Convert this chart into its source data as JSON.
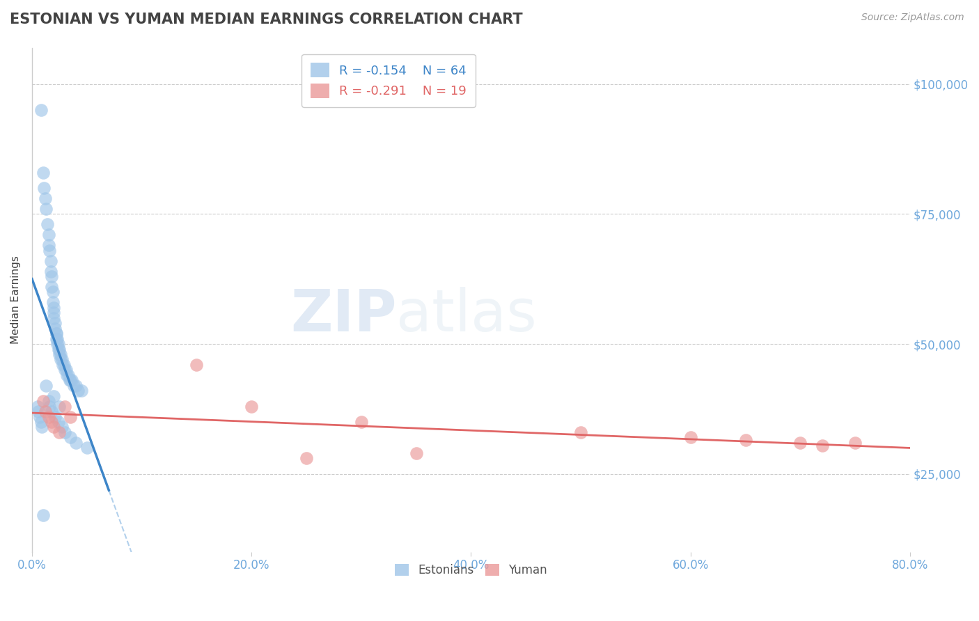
{
  "title": "ESTONIAN VS YUMAN MEDIAN EARNINGS CORRELATION CHART",
  "source_text": "Source: ZipAtlas.com",
  "ylabel": "Median Earnings",
  "xlim": [
    0.0,
    0.8
  ],
  "ylim": [
    10000,
    107000
  ],
  "yticks": [
    25000,
    50000,
    75000,
    100000
  ],
  "ytick_labels": [
    "$25,000",
    "$50,000",
    "$75,000",
    "$100,000"
  ],
  "xtick_labels": [
    "0.0%",
    "20.0%",
    "40.0%",
    "60.0%",
    "80.0%"
  ],
  "xticks": [
    0.0,
    0.2,
    0.4,
    0.6,
    0.8
  ],
  "blue_color": "#9fc5e8",
  "pink_color": "#ea9999",
  "blue_line_color": "#3d85c8",
  "pink_line_color": "#e06666",
  "blue_dash_color": "#9fc5e8",
  "axis_color": "#cccccc",
  "grid_color": "#cccccc",
  "title_color": "#434343",
  "tick_label_color": "#6fa8dc",
  "ylabel_color": "#434343",
  "legend_r1": "R = -0.154",
  "legend_n1": "N = 64",
  "legend_r2": "R = -0.291",
  "legend_n2": "N = 19",
  "legend_label1": "Estonians",
  "legend_label2": "Yuman",
  "blue_x": [
    0.008,
    0.01,
    0.011,
    0.012,
    0.013,
    0.014,
    0.015,
    0.015,
    0.016,
    0.017,
    0.017,
    0.018,
    0.018,
    0.019,
    0.019,
    0.02,
    0.02,
    0.02,
    0.021,
    0.021,
    0.022,
    0.022,
    0.022,
    0.023,
    0.023,
    0.024,
    0.024,
    0.025,
    0.025,
    0.026,
    0.026,
    0.027,
    0.028,
    0.029,
    0.03,
    0.031,
    0.032,
    0.033,
    0.034,
    0.035,
    0.036,
    0.038,
    0.04,
    0.042,
    0.045,
    0.005,
    0.006,
    0.007,
    0.008,
    0.009,
    0.015,
    0.016,
    0.018,
    0.021,
    0.024,
    0.027,
    0.03,
    0.035,
    0.04,
    0.05,
    0.013,
    0.02,
    0.025,
    0.01
  ],
  "blue_y": [
    95000,
    83000,
    80000,
    78000,
    76000,
    73000,
    71000,
    69000,
    68000,
    66000,
    64000,
    63000,
    61000,
    60000,
    58000,
    57000,
    56000,
    55000,
    54000,
    53000,
    52000,
    52000,
    51000,
    51000,
    50000,
    50000,
    49000,
    49000,
    48000,
    48000,
    47000,
    47000,
    46000,
    46000,
    45000,
    45000,
    44000,
    44000,
    43000,
    43000,
    43000,
    42000,
    42000,
    41000,
    41000,
    38000,
    37000,
    36000,
    35000,
    34000,
    39000,
    38000,
    37000,
    36000,
    35000,
    34000,
    33000,
    32000,
    31000,
    30000,
    42000,
    40000,
    38000,
    17000
  ],
  "pink_x": [
    0.01,
    0.012,
    0.015,
    0.018,
    0.02,
    0.025,
    0.03,
    0.035,
    0.15,
    0.2,
    0.25,
    0.3,
    0.35,
    0.5,
    0.6,
    0.65,
    0.7,
    0.72,
    0.75
  ],
  "pink_y": [
    39000,
    37000,
    36000,
    35000,
    34000,
    33000,
    38000,
    36000,
    46000,
    38000,
    28000,
    35000,
    29000,
    33000,
    32000,
    31500,
    31000,
    30500,
    31000
  ],
  "watermark_zip": "ZIP",
  "watermark_atlas": "atlas",
  "background_color": "#ffffff"
}
